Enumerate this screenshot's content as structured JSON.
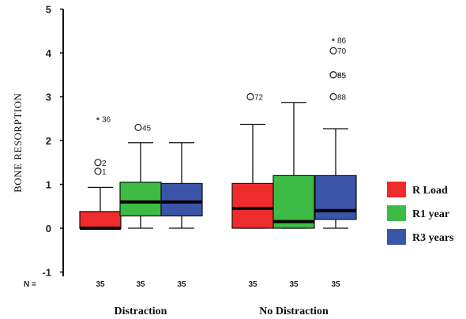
{
  "chart_data": {
    "type": "boxplot",
    "ylabel": "BONE RESORPTION",
    "ylim": [
      -1.1,
      5
    ],
    "yticks": [
      -1,
      0,
      1,
      2,
      3,
      4,
      5
    ],
    "n_label": "N =",
    "groups": [
      "Distraction",
      "No Distraction"
    ],
    "series": [
      {
        "name": "R Load",
        "color": "#ee2c2c"
      },
      {
        "name": "R1 year",
        "color": "#3dbb45"
      },
      {
        "name": "R3 years",
        "color": "#3a54a8"
      }
    ],
    "boxes": [
      {
        "group": "Distraction",
        "series": "R Load",
        "n": "35",
        "whisker_low": 0,
        "q1": 0,
        "median": 0,
        "q3": 0.38,
        "whisker_high": 0.93,
        "outliers": [
          {
            "value": 1.5,
            "label": "2",
            "marker": "o"
          },
          {
            "value": 1.3,
            "label": "1",
            "marker": "o"
          },
          {
            "value": 2.5,
            "label": "36",
            "marker": "*"
          }
        ]
      },
      {
        "group": "Distraction",
        "series": "R1 year",
        "n": "35",
        "whisker_low": 0,
        "q1": 0.28,
        "median": 0.6,
        "q3": 1.05,
        "whisker_high": 1.95,
        "outliers": [
          {
            "value": 2.3,
            "label": "45",
            "marker": "o"
          }
        ]
      },
      {
        "group": "Distraction",
        "series": "R3 years",
        "n": "35",
        "whisker_low": 0,
        "q1": 0.28,
        "median": 0.6,
        "q3": 1.02,
        "whisker_high": 1.95,
        "outliers": []
      },
      {
        "group": "No Distraction",
        "series": "R Load",
        "n": "35",
        "whisker_low": 0,
        "q1": 0,
        "median": 0.45,
        "q3": 1.02,
        "whisker_high": 2.37,
        "outliers": [
          {
            "value": 3.0,
            "label": "72",
            "marker": "o"
          }
        ]
      },
      {
        "group": "No Distraction",
        "series": "R1 year",
        "n": "35",
        "whisker_low": 0,
        "q1": 0,
        "median": 0.15,
        "q3": 1.2,
        "whisker_high": 2.87,
        "outliers": []
      },
      {
        "group": "No Distraction",
        "series": "R3 years",
        "n": "35",
        "whisker_low": 0,
        "q1": 0.2,
        "median": 0.4,
        "q3": 1.2,
        "whisker_high": 2.27,
        "outliers": [
          {
            "value": 4.3,
            "label": "86",
            "marker": "*"
          },
          {
            "value": 4.05,
            "label": "70",
            "marker": "o"
          },
          {
            "value": 3.5,
            "label": "55",
            "marker": "o"
          },
          {
            "value": 3.5,
            "label": "85",
            "marker": "o"
          },
          {
            "value": 3.0,
            "label": "88",
            "marker": "o"
          }
        ]
      }
    ],
    "legend_position": "right"
  }
}
